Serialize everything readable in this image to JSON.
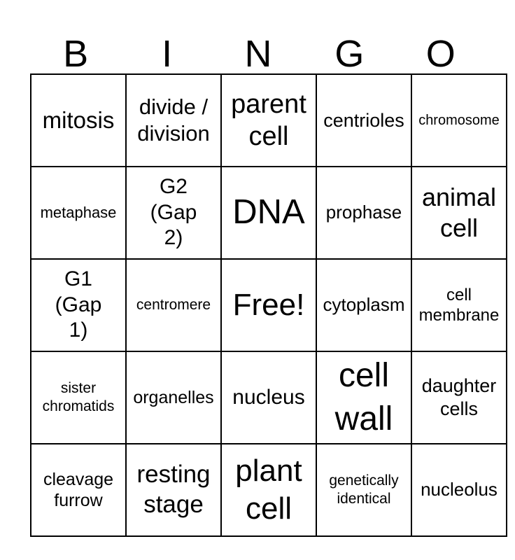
{
  "card": {
    "header_letters": [
      "B",
      "I",
      "N",
      "G",
      "O"
    ],
    "free_space_label": "Free!"
  },
  "colors": {
    "text": "#000000",
    "background": "#ffffff",
    "grid_line": "#000000"
  },
  "grid": {
    "rows": [
      {
        "cells": [
          {
            "label": "mitosis"
          },
          {
            "label": "divide /\ndivision"
          },
          {
            "label": "parent\ncell"
          },
          {
            "label": "centrioles"
          },
          {
            "label": "chromosome"
          }
        ]
      },
      {
        "cells": [
          {
            "label": "metaphase"
          },
          {
            "label": "G2\n(Gap\n2)"
          },
          {
            "label": "DNA"
          },
          {
            "label": "prophase"
          },
          {
            "label": "animal\ncell"
          }
        ]
      },
      {
        "cells": [
          {
            "label": "G1\n(Gap\n1)"
          },
          {
            "label": "centromere"
          },
          {
            "label": "Free!"
          },
          {
            "label": "cytoplasm"
          },
          {
            "label": "cell\nmembrane"
          }
        ]
      },
      {
        "cells": [
          {
            "label": "sister\nchromatids"
          },
          {
            "label": "organelles"
          },
          {
            "label": "nucleus"
          },
          {
            "label": "cell\nwall"
          },
          {
            "label": "daughter\ncells"
          }
        ]
      },
      {
        "cells": [
          {
            "label": "cleavage\nfurrow"
          },
          {
            "label": "resting\nstage"
          },
          {
            "label": "plant\ncell"
          },
          {
            "label": "genetically\nidentical"
          },
          {
            "label": "nucleolus"
          }
        ]
      }
    ]
  }
}
